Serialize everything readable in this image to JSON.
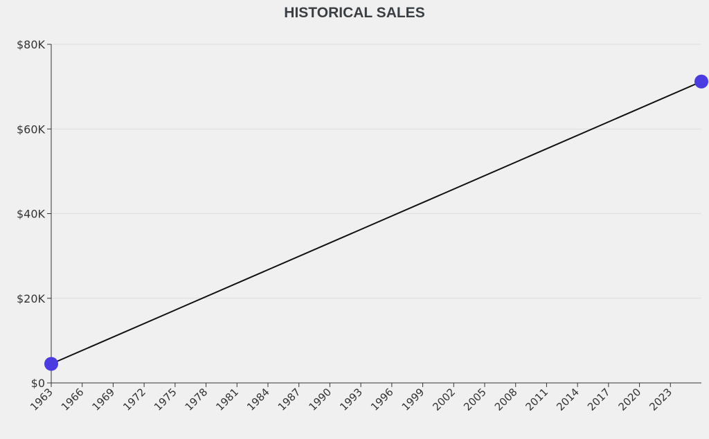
{
  "chart_data": {
    "type": "line",
    "title": "HISTORICAL SALES",
    "xlabel": "",
    "ylabel": "",
    "x": [
      1963,
      2026
    ],
    "series": [
      {
        "values": [
          4500,
          71200
        ]
      }
    ],
    "xlim": [
      1963,
      2026
    ],
    "ylim": [
      0,
      80000
    ],
    "x_ticks": [
      1963,
      1966,
      1969,
      1972,
      1975,
      1978,
      1981,
      1984,
      1987,
      1990,
      1993,
      1996,
      1999,
      2002,
      2005,
      2008,
      2011,
      2014,
      2017,
      2020,
      2023
    ],
    "y_ticks": [
      0,
      20000,
      40000,
      60000,
      80000
    ],
    "y_tick_labels": [
      "$0",
      "$20K",
      "$40K",
      "$60K",
      "$80K"
    ],
    "grid": true,
    "legend": "none",
    "line_color": "#111111",
    "point_color": "#4a3ce0"
  }
}
